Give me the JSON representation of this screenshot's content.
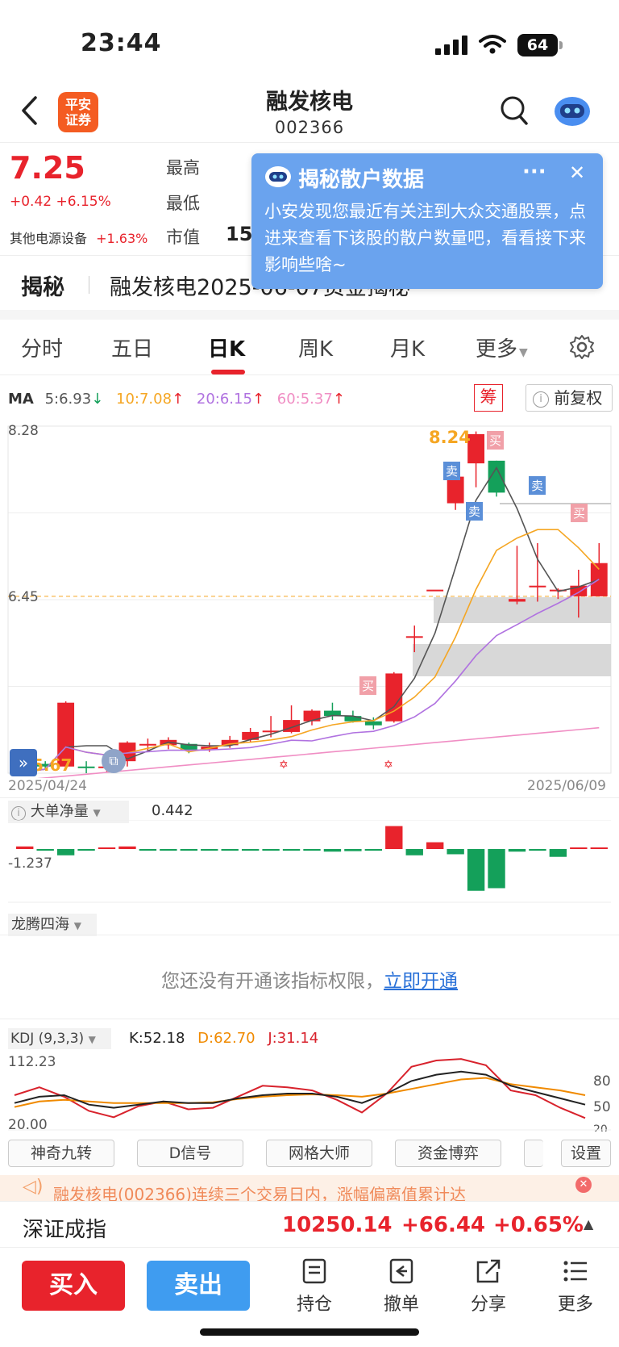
{
  "status_bar": {
    "time": "23:44",
    "battery": "64"
  },
  "header": {
    "title": "融发核电",
    "code": "002366",
    "logo_text_1": "平安",
    "logo_text_2": "证券"
  },
  "quote": {
    "price": "7.25",
    "change": "+0.42 +6.15%",
    "sector_name": "其他电源设备",
    "sector_change": "+1.63%",
    "label_high": "最高",
    "label_low": "最低",
    "label_cap": "市值",
    "cap_value_partial": "15"
  },
  "popup": {
    "title": "揭秘散户数据",
    "more": "···",
    "close": "✕",
    "body": "小安发现您最近有关注到大众交通股票，点进来查看下该股的散户数量吧，看看接下来影响些啥~"
  },
  "reveal_bar": {
    "label": "揭秘",
    "text": "融发核电2025-06-07资金揭秘"
  },
  "tabs": [
    "分时",
    "五日",
    "日K",
    "周K",
    "月K",
    "更多"
  ],
  "ma": {
    "label": "MA",
    "ma5": "5:6.93",
    "ma10": "10:7.08",
    "ma20": "20:6.15",
    "ma60": "60:5.37",
    "chip_label": "筹",
    "adjust_label": "前复权",
    "colors": {
      "ma5": "#555555",
      "ma10": "#f5a623",
      "ma20": "#b072e0",
      "ma60": "#f08ec4"
    }
  },
  "kline": {
    "y_top": "8.28",
    "y_mid": "6.45",
    "y_low": "5.67",
    "high_label": "8.24",
    "date_start": "2025/04/24",
    "date_end": "2025/06/09",
    "buy_mark": "买",
    "sell_mark": "卖"
  },
  "chart_data": [
    {
      "type": "candlestick",
      "title": "",
      "x_range": [
        "2025/04/24",
        "2025/06/09"
      ],
      "ylim": [
        5.67,
        8.28
      ],
      "y_ticks": [
        8.28,
        6.45,
        5.67
      ],
      "candles": [
        {
          "o": 5.78,
          "c": 5.68,
          "h": 5.82,
          "l": 5.66
        },
        {
          "o": 5.74,
          "c": 5.72,
          "h": 5.76,
          "l": 5.7
        },
        {
          "o": 5.72,
          "c": 6.2,
          "h": 6.21,
          "l": 5.7
        },
        {
          "o": 5.72,
          "c": 5.71,
          "h": 5.76,
          "l": 5.67
        },
        {
          "o": 5.71,
          "c": 5.72,
          "h": 5.74,
          "l": 5.68
        },
        {
          "o": 5.76,
          "c": 5.9,
          "h": 5.91,
          "l": 5.72
        },
        {
          "o": 5.88,
          "c": 5.89,
          "h": 5.93,
          "l": 5.84
        },
        {
          "o": 5.88,
          "c": 5.92,
          "h": 5.94,
          "l": 5.85
        },
        {
          "o": 5.89,
          "c": 5.84,
          "h": 5.9,
          "l": 5.82
        },
        {
          "o": 5.85,
          "c": 5.87,
          "h": 5.9,
          "l": 5.83
        },
        {
          "o": 5.88,
          "c": 5.92,
          "h": 5.95,
          "l": 5.86
        },
        {
          "o": 5.92,
          "c": 5.98,
          "h": 6.01,
          "l": 5.9
        },
        {
          "o": 5.98,
          "c": 5.99,
          "h": 6.1,
          "l": 5.94
        },
        {
          "o": 5.98,
          "c": 6.07,
          "h": 6.18,
          "l": 5.97
        },
        {
          "o": 6.06,
          "c": 6.14,
          "h": 6.15,
          "l": 6.03
        },
        {
          "o": 6.14,
          "c": 6.1,
          "h": 6.2,
          "l": 6.07
        },
        {
          "o": 6.1,
          "c": 6.06,
          "h": 6.14,
          "l": 6.05
        },
        {
          "o": 6.06,
          "c": 6.03,
          "h": 6.09,
          "l": 6.0
        },
        {
          "o": 6.06,
          "c": 6.42,
          "h": 6.43,
          "l": 6.05
        },
        {
          "o": 6.7,
          "c": 6.7,
          "h": 6.78,
          "l": 6.58
        },
        {
          "o": 7.05,
          "c": 7.05,
          "h": 7.05,
          "l": 7.05
        },
        {
          "o": 7.7,
          "c": 7.9,
          "h": 7.92,
          "l": 7.65
        },
        {
          "o": 8.0,
          "c": 8.22,
          "h": 8.24,
          "l": 7.82
        },
        {
          "o": 8.02,
          "c": 7.78,
          "h": 8.02,
          "l": 7.75
        },
        {
          "o": 6.96,
          "c": 6.98,
          "h": 7.38,
          "l": 6.94
        },
        {
          "o": 7.08,
          "c": 7.08,
          "h": 7.4,
          "l": 6.96
        },
        {
          "o": 7.04,
          "c": 7.05,
          "h": 7.06,
          "l": 6.98
        },
        {
          "o": 7.0,
          "c": 7.08,
          "h": 7.2,
          "l": 6.84
        },
        {
          "o": 7.0,
          "c": 7.25,
          "h": 7.4,
          "l": 7.0
        }
      ],
      "ma_series": [
        {
          "name": "MA5",
          "last": 6.93
        },
        {
          "name": "MA10",
          "last": 7.08
        },
        {
          "name": "MA20",
          "last": 6.15
        },
        {
          "name": "MA60",
          "last": 5.37
        }
      ]
    },
    {
      "type": "bar",
      "title": "大单净量",
      "current": 0.442,
      "ylim": [
        -1.237,
        0.442
      ],
      "values": [
        0.05,
        -0.02,
        -0.12,
        -0.03,
        0.0,
        0.05,
        -0.01,
        -0.02,
        -0.03,
        -0.02,
        -0.01,
        -0.02,
        -0.03,
        -0.01,
        -0.02,
        -0.05,
        -0.04,
        -0.02,
        0.44,
        -0.12,
        0.13,
        -0.1,
        -0.8,
        -0.75,
        -0.05,
        -0.02,
        -0.15,
        0.02,
        0.03
      ]
    },
    {
      "type": "line",
      "title": "KDJ (9,3,3)",
      "K": 52.18,
      "D": 62.7,
      "J": 31.14,
      "ylim": [
        20.0,
        112.23
      ],
      "right_ticks": [
        80,
        50,
        20
      ]
    }
  ],
  "volume_section": {
    "label": "大单净量",
    "value": "0.442",
    "min_label": "-1.237"
  },
  "longteng": {
    "label": "龙腾四海",
    "notice": "您还没有开通该指标权限，",
    "open_link": "立即开通"
  },
  "kdj": {
    "label": "KDJ (9,3,3)",
    "k": "K:52.18",
    "d": "D:62.70",
    "j": "J:31.14",
    "top": "112.23",
    "bottom": "20.00",
    "r80": "80",
    "r50": "50",
    "r20": "20"
  },
  "tool_buttons": [
    "神奇九转",
    "D信号",
    "网格大师",
    "资金博弈"
  ],
  "settings_label": "设置",
  "marquee": "融发核电(002366)连续三个交易日内，涨幅偏离值累计达",
  "index": {
    "name": "深证成指",
    "value": "10250.14",
    "change": "+66.44",
    "pct": "+0.65%"
  },
  "bottom": {
    "buy": "买入",
    "sell": "卖出",
    "nav": [
      "持仓",
      "撤单",
      "分享",
      "更多"
    ]
  }
}
